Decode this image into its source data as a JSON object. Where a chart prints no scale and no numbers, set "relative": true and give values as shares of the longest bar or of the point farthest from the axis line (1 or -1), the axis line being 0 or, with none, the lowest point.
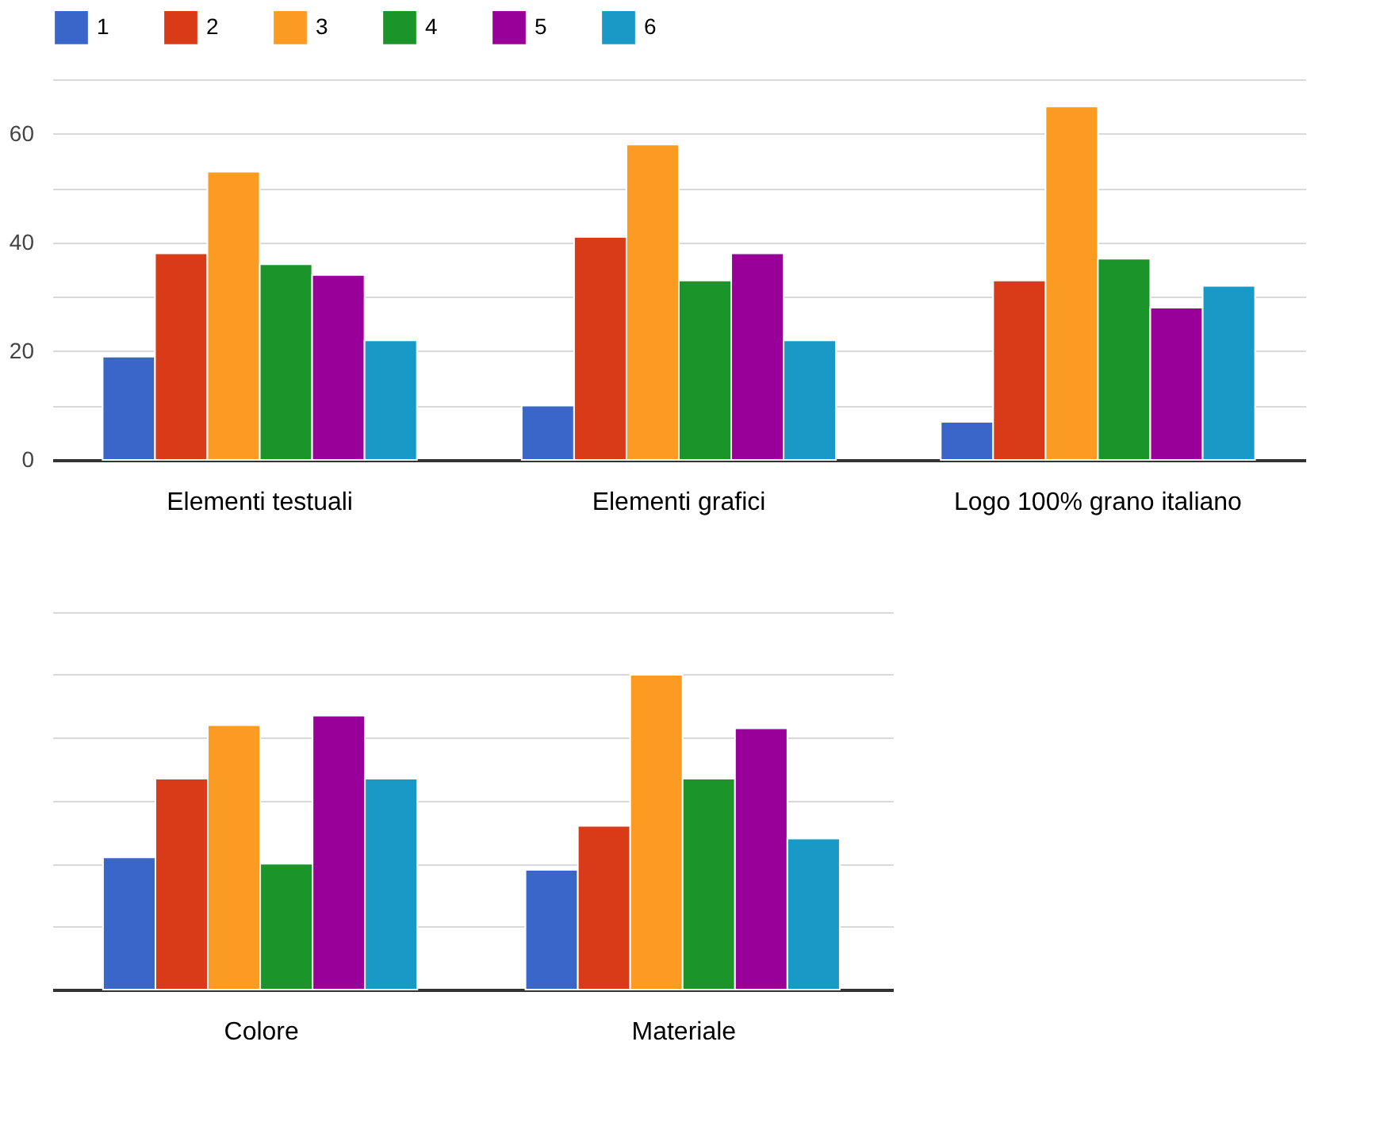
{
  "chart_data": [
    {
      "type": "bar",
      "categories": [
        "Elementi testuali",
        "Elementi grafici",
        "Logo 100% grano italiano"
      ],
      "series": [
        {
          "name": "1",
          "color": "#3b66c9",
          "values": [
            19,
            10,
            7
          ]
        },
        {
          "name": "2",
          "color": "#d93a17",
          "values": [
            38,
            41,
            33
          ]
        },
        {
          "name": "3",
          "color": "#fc9b22",
          "values": [
            53,
            58,
            65
          ]
        },
        {
          "name": "4",
          "color": "#1b9529",
          "values": [
            36,
            33,
            37
          ]
        },
        {
          "name": "5",
          "color": "#990099",
          "values": [
            34,
            38,
            28
          ]
        },
        {
          "name": "6",
          "color": "#1899c6",
          "values": [
            22,
            22,
            32
          ]
        }
      ],
      "ylim": [
        0,
        70
      ],
      "yticks": [
        0,
        {
          "value": 10,
          "label": null
        },
        20,
        {
          "value": 30,
          "label": null
        },
        40,
        {
          "value": 50,
          "label": null
        },
        60,
        {
          "value": 70,
          "label": null
        }
      ],
      "grid": "y",
      "legend": "top left"
    },
    {
      "type": "bar",
      "categories": [
        "Colore",
        "Materiale"
      ],
      "relative": true,
      "series": [
        {
          "name": "1",
          "color": "#3b66c9",
          "values": [
            0.42,
            0.38
          ]
        },
        {
          "name": "2",
          "color": "#d93a17",
          "values": [
            0.67,
            0.52
          ]
        },
        {
          "name": "3",
          "color": "#fc9b22",
          "values": [
            0.84,
            1
          ]
        },
        {
          "name": "4",
          "color": "#1b9529",
          "values": [
            0.4,
            0.67
          ]
        },
        {
          "name": "5",
          "color": "#990099",
          "values": [
            0.87,
            0.83
          ]
        },
        {
          "name": "6",
          "color": "#1899c6",
          "values": [
            0.67,
            0.48
          ]
        }
      ],
      "grid": "y",
      "legend": false
    }
  ]
}
